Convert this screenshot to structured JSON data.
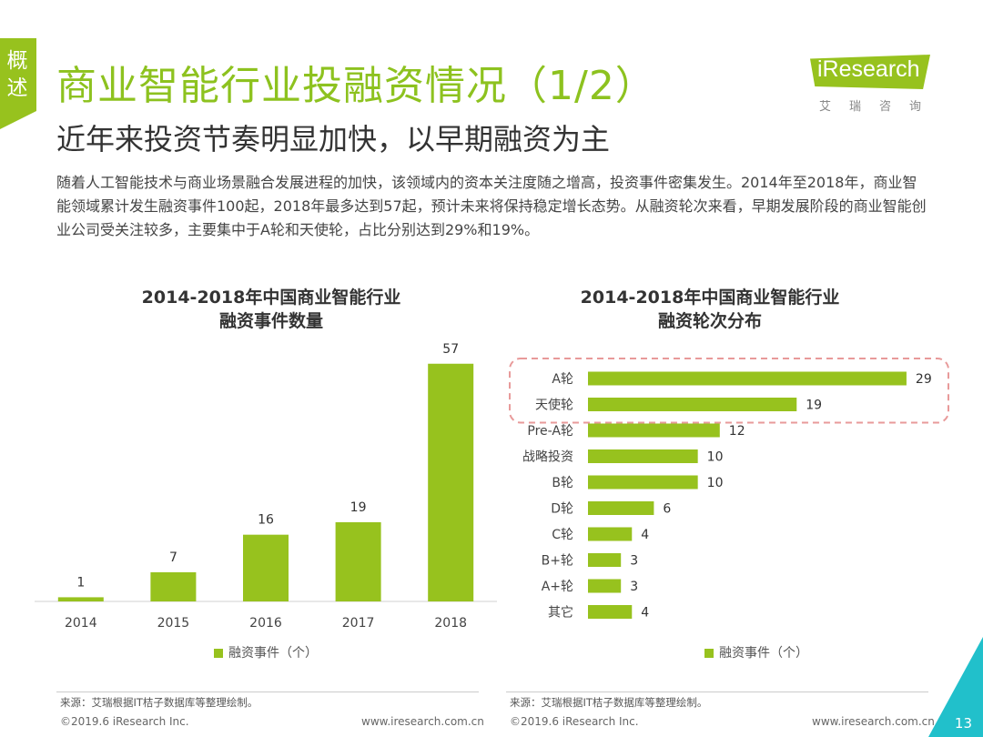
{
  "side_tab": "概述",
  "header": {
    "title": "商业智能行业投融资情况（1/2）",
    "subtitle": "近年来投资节奏明显加快，以早期融资为主"
  },
  "logo": {
    "brand": "iResearch",
    "sub": "艾瑞咨询"
  },
  "summary": "随着人工智能技术与商业场景融合发展进程的加快，该领域内的资本关注度随之增高，投资事件密集发生。2014年至2018年，商业智能领域累计发生融资事件100起，2018年最多达到57起，预计未来将保持稳定增长态势。从融资轮次来看，早期发展阶段的商业智能创业公司受关注较多，主要集中于A轮和天使轮，占比分别达到29%和19%。",
  "colors": {
    "accent": "#97c21e",
    "title": "#8dc21f",
    "highlight": "#e89a9a",
    "corner": "#21c0cb"
  },
  "chart_data": [
    {
      "type": "bar",
      "title_line1": "2014-2018年中国商业智能行业",
      "title_line2": "融资事件数量",
      "categories": [
        "2014",
        "2015",
        "2016",
        "2017",
        "2018"
      ],
      "values": [
        1,
        7,
        16,
        19,
        57
      ],
      "legend": "融资事件（个）",
      "ylim": [
        0,
        60
      ]
    },
    {
      "type": "bar",
      "orientation": "horizontal",
      "title_line1": "2014-2018年中国商业智能行业",
      "title_line2": "融资轮次分布",
      "categories": [
        "A轮",
        "天使轮",
        "Pre-A轮",
        "战略投资",
        "B轮",
        "D轮",
        "C轮",
        "B+轮",
        "A+轮",
        "其它"
      ],
      "values": [
        29,
        19,
        12,
        10,
        10,
        6,
        4,
        3,
        3,
        4
      ],
      "highlighted": [
        "A轮",
        "天使轮"
      ],
      "legend": "融资事件（个）",
      "xlim": [
        0,
        30
      ]
    }
  ],
  "sources": {
    "left": "来源：艾瑞根据IT桔子数据库等整理绘制。",
    "right": "来源：艾瑞根据IT桔子数据库等整理绘制。"
  },
  "footer": {
    "copyright_left": "©2019.6 iResearch Inc.",
    "url_left": "www.iresearch.com.cn",
    "copyright_right": "©2019.6 iResearch Inc.",
    "url_right": "www.iresearch.com.cn",
    "page_number": "13"
  }
}
